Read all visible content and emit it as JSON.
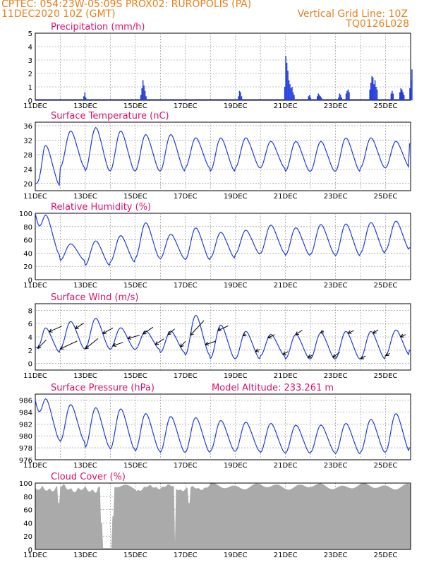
{
  "header": {
    "line1_left": "CPTEC:   054:23W-05:09S    PROX02: RUROPOLIS (PA)",
    "line2_left": "11DEC2020 10Z (GMT)",
    "line2_right": "Vertical Grid Line: 10Z",
    "line3_right": "TQ0126L028"
  },
  "colors": {
    "header": "#e8801e",
    "title": "#e0106e",
    "line": "#1f3bdc",
    "cloud": "#aaaaaa",
    "grid": "#888888"
  },
  "x_axis": {
    "labels": [
      "11DEC",
      "13DEC",
      "15DEC",
      "17DEC",
      "19DEC",
      "21DEC",
      "23DEC",
      "25DEC"
    ],
    "label_days": [
      0,
      2,
      4,
      6,
      8,
      10,
      12,
      14
    ],
    "days_total": 15
  },
  "chart_data": [
    {
      "type": "bar",
      "title": "Precipitation  (mm/h)",
      "ylim": [
        0,
        5
      ],
      "yticks": [
        "0",
        "1",
        "2",
        "3",
        "4",
        "5"
      ],
      "ytick_values": [
        0,
        1,
        2,
        3,
        4,
        5
      ],
      "events": [
        {
          "day": 1.92,
          "values": [
            0.3,
            0.6,
            0.2
          ]
        },
        {
          "day": 4.2,
          "values": [
            0.4,
            0.9,
            1.5,
            1.1,
            0.7,
            0.3
          ]
        },
        {
          "day": 6.0,
          "values": [
            0.1
          ]
        },
        {
          "day": 8.1,
          "values": [
            0.3,
            0.7,
            0.6,
            0.3
          ]
        },
        {
          "day": 9.95,
          "values": [
            1.0,
            3.3,
            2.8,
            2.2,
            1.5,
            1.2,
            0.9,
            1.0,
            0.6,
            0.4
          ]
        },
        {
          "day": 10.9,
          "values": [
            0.3,
            0.4,
            0.2
          ]
        },
        {
          "day": 11.25,
          "values": [
            0.3,
            0.5,
            0.4,
            0.3,
            0.2
          ]
        },
        {
          "day": 12.1,
          "values": [
            0.2,
            0.5,
            0.4,
            0.2
          ]
        },
        {
          "day": 12.4,
          "values": [
            0.5,
            0.7,
            0.8,
            0.6
          ]
        },
        {
          "day": 13.35,
          "values": [
            0.8,
            1.3,
            1.8,
            1.7,
            1.2,
            1.5,
            1.0,
            0.8
          ]
        },
        {
          "day": 14.2,
          "values": [
            0.5,
            0.7,
            0.5
          ]
        },
        {
          "day": 14.55,
          "values": [
            0.6,
            0.9,
            0.8,
            0.6,
            0.4
          ]
        },
        {
          "day": 14.95,
          "values": [
            0.9,
            1.5,
            2.3
          ]
        }
      ]
    },
    {
      "type": "line",
      "title": "Surface Temperature (nC)",
      "ylim": [
        18,
        37
      ],
      "yticks": [
        "20",
        "24",
        "28",
        "32",
        "36"
      ],
      "ytick_values": [
        20,
        24,
        28,
        32,
        36
      ],
      "max": [
        31,
        35,
        36,
        35,
        34,
        34,
        33,
        33,
        33,
        32,
        32,
        32,
        33,
        33,
        32
      ],
      "min": [
        19,
        24,
        23,
        23,
        23,
        23,
        24,
        23,
        24,
        24,
        23,
        23,
        23,
        24,
        24
      ],
      "start": 20,
      "end": 31
    },
    {
      "type": "line",
      "title": "Relative Humidity (%)",
      "ylim": [
        0,
        100
      ],
      "yticks": [
        "0",
        "20",
        "40",
        "60",
        "80",
        "100"
      ],
      "ytick_values": [
        0,
        20,
        40,
        60,
        80,
        100
      ],
      "max": [
        100,
        55,
        60,
        68,
        88,
        70,
        80,
        73,
        76,
        84,
        80,
        85,
        86,
        88,
        90
      ],
      "min": [
        35,
        28,
        20,
        25,
        30,
        30,
        28,
        31,
        37,
        38,
        35,
        36,
        34,
        38,
        42
      ],
      "start": 100,
      "end": 48
    },
    {
      "type": "line",
      "title": "Surface Wind  (m/s)",
      "ylim": [
        -1,
        9
      ],
      "yticks": [
        "0",
        "2",
        "4",
        "6",
        "8"
      ],
      "ytick_values": [
        0,
        2,
        4,
        6,
        8
      ],
      "max": [
        5.5,
        6.5,
        7.0,
        5.5,
        5.0,
        5.0,
        7.5,
        6.0,
        5.0,
        4.5,
        4.5,
        4.8,
        5.0,
        5.0,
        5.2
      ],
      "min": [
        1.5,
        2.0,
        2.0,
        2.0,
        2.0,
        1.5,
        1.0,
        0.5,
        0.5,
        1.0,
        0.5,
        0.5,
        0.5,
        0.5,
        1.0
      ],
      "start": 2.5,
      "end": 2.0,
      "arrows": [
        {
          "day": 0.1,
          "u": 1.0,
          "v": 1.5
        },
        {
          "day": 0.55,
          "u": 1.5,
          "v": 1.0
        },
        {
          "day": 1.0,
          "u": 2.0,
          "v": 1.4
        },
        {
          "day": 1.6,
          "u": 1.0,
          "v": 1.0
        },
        {
          "day": 2.0,
          "u": 1.5,
          "v": 1.8
        },
        {
          "day": 2.7,
          "u": 1.2,
          "v": 1.0
        },
        {
          "day": 3.1,
          "u": 1.2,
          "v": 0.6
        },
        {
          "day": 3.7,
          "u": 1.4,
          "v": 0.6
        },
        {
          "day": 4.3,
          "u": 1.2,
          "v": 1.2
        },
        {
          "day": 4.8,
          "u": 1.0,
          "v": 1.0
        },
        {
          "day": 5.3,
          "u": 0.8,
          "v": 1.0
        },
        {
          "day": 5.8,
          "u": 0.6,
          "v": 1.0
        },
        {
          "day": 6.2,
          "u": 1.6,
          "v": 2.6
        },
        {
          "day": 6.8,
          "u": 1.2,
          "v": 0.6
        },
        {
          "day": 7.3,
          "u": 1.2,
          "v": 0.8
        },
        {
          "day": 8.3,
          "u": 0.3,
          "v": 0.3
        },
        {
          "day": 8.8,
          "u": 0.5,
          "v": 0.4
        },
        {
          "day": 9.3,
          "u": 0.8,
          "v": 0.6
        },
        {
          "day": 9.9,
          "u": 0.6,
          "v": 0.5
        },
        {
          "day": 10.4,
          "u": 0.8,
          "v": 0.8
        },
        {
          "day": 10.9,
          "u": 0.5,
          "v": 0.4
        },
        {
          "day": 11.4,
          "u": 0.4,
          "v": 0.3
        },
        {
          "day": 11.9,
          "u": 0.8,
          "v": 0.9
        },
        {
          "day": 12.5,
          "u": 0.7,
          "v": 0.5
        },
        {
          "day": 13.0,
          "u": 0.6,
          "v": 0.5
        },
        {
          "day": 13.5,
          "u": 0.6,
          "v": 0.6
        },
        {
          "day": 14.0,
          "u": 0.5,
          "v": 0.4
        },
        {
          "day": 14.6,
          "u": 0.6,
          "v": 0.4
        }
      ]
    },
    {
      "type": "line",
      "title": "Surface Pressure (hPa)",
      "subtitle": "Model Altitude: 233.261  m",
      "ylim": [
        976,
        987
      ],
      "yticks": [
        "976",
        "978",
        "980",
        "982",
        "984",
        "986"
      ],
      "ytick_values": [
        976,
        978,
        980,
        982,
        984,
        986
      ],
      "max": [
        986.5,
        985.5,
        985.0,
        984.8,
        984.0,
        983.5,
        983.3,
        982.8,
        982.5,
        982.3,
        982.0,
        982.0,
        982.3,
        983.0,
        984.0
      ],
      "min": [
        979.0,
        978.8,
        977.8,
        977.5,
        977.2,
        977.0,
        977.0,
        977.2,
        977.2,
        977.0,
        976.9,
        977.0,
        976.8,
        977.0,
        977.0
      ],
      "start": 986.0,
      "end": 978.0
    },
    {
      "type": "area",
      "title": "Cloud Cover (%)",
      "ylim": [
        0,
        100
      ],
      "yticks": [
        "0",
        "20",
        "40",
        "60",
        "80",
        "100"
      ],
      "ytick_values": [
        0,
        20,
        40,
        60,
        80,
        100
      ],
      "base": 95,
      "gaps": [
        {
          "from": 2.7,
          "to": 3.05,
          "value": 2
        },
        {
          "from": 2.62,
          "to": 2.7,
          "value": 40
        },
        {
          "from": 3.05,
          "to": 3.15,
          "value": 50
        },
        {
          "from": 5.55,
          "to": 5.6,
          "value": 10
        },
        {
          "from": 0.9,
          "to": 1.0,
          "value": 70
        },
        {
          "from": 6.1,
          "to": 6.2,
          "value": 70
        }
      ]
    }
  ]
}
